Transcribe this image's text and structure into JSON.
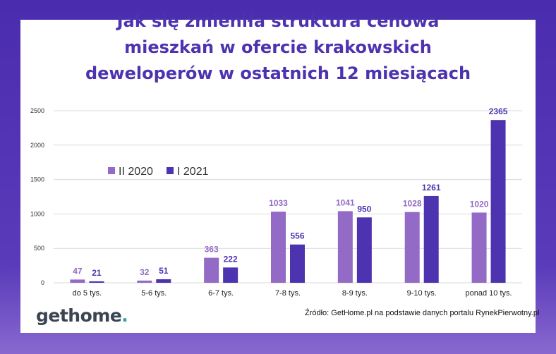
{
  "title_lines": [
    "Jak się zmieniła struktura cenowa",
    "mieszkań w ofercie krakowskich",
    "deweloperów w ostatnich 12 miesiącach"
  ],
  "source": "Źródło: GetHome.pl na podstawie danych portalu RynekPierwotny.pl",
  "logo": {
    "main": "gethome",
    "accent": "."
  },
  "colors": {
    "series_a": "#936ac6",
    "series_b": "#4e33b0",
    "title": "#4e33b0"
  },
  "chart_data": {
    "type": "bar",
    "title": "Jak się zmieniła struktura cenowa mieszkań w ofercie krakowskich deweloperów w ostatnich 12 miesiącach",
    "categories": [
      "do 5 tys.",
      "5-6 tys.",
      "6-7 tys.",
      "7-8 tys.",
      "8-9 tys.",
      "9-10 tys.",
      "ponad 10 tys."
    ],
    "series": [
      {
        "name": "II 2020",
        "values": [
          47,
          32,
          363,
          1033,
          1041,
          1028,
          1020
        ],
        "color": "#936ac6"
      },
      {
        "name": "I 2021",
        "values": [
          21,
          51,
          222,
          556,
          950,
          1261,
          2365
        ],
        "color": "#4e33b0"
      }
    ],
    "ylim": [
      0,
      2500
    ],
    "yticks": [
      0,
      500,
      1000,
      1500,
      2000,
      2500
    ],
    "xlabel": "",
    "ylabel": "",
    "grid": true,
    "legend": "upper-left"
  }
}
